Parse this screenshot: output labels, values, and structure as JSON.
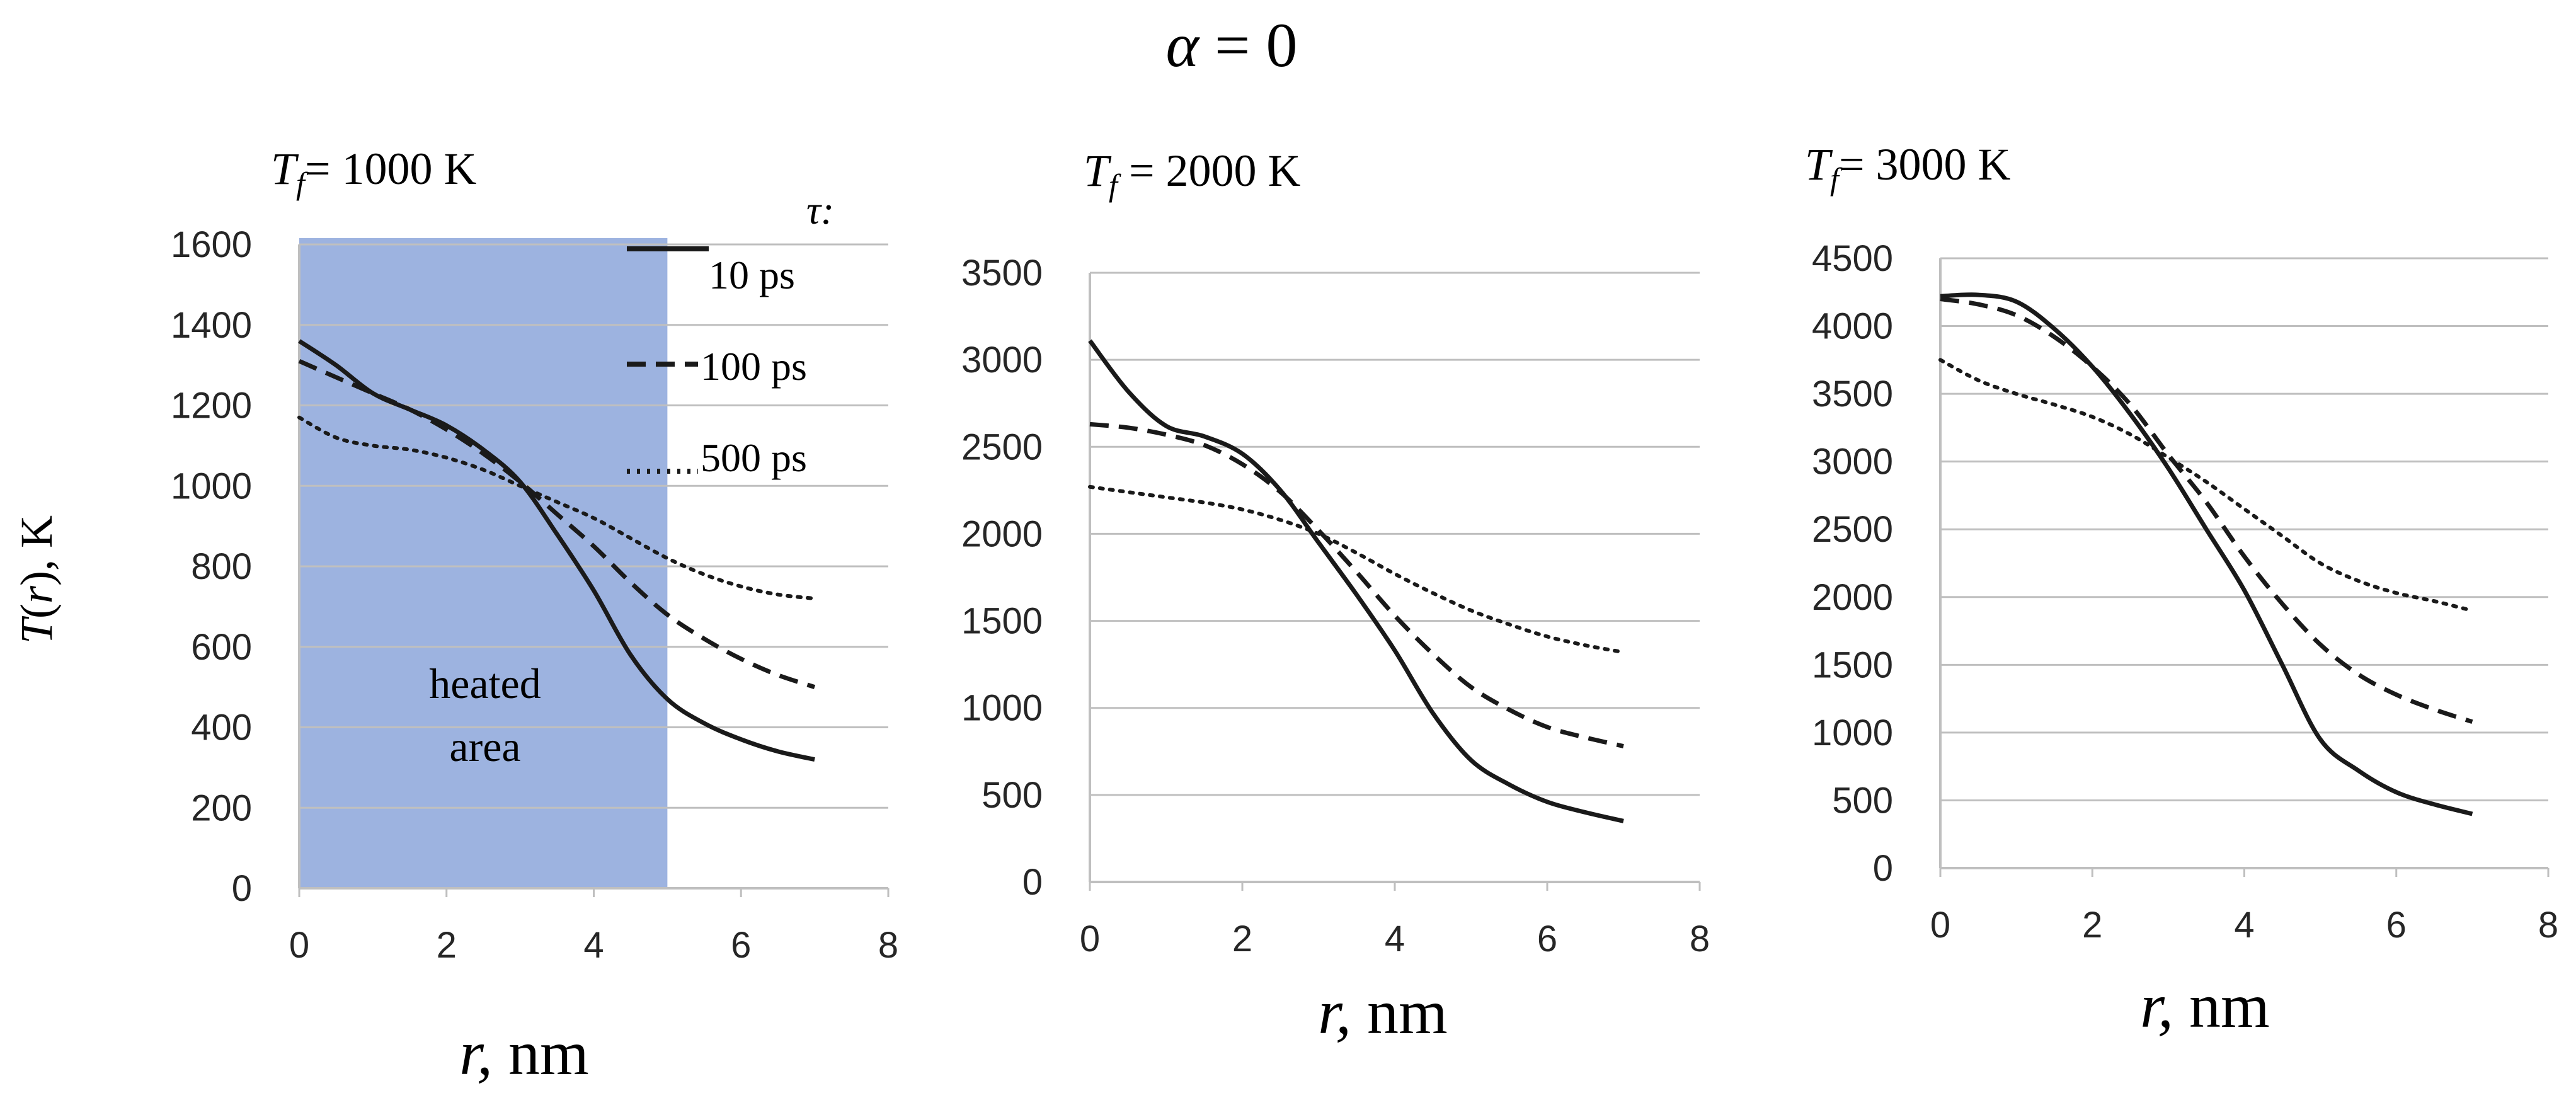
{
  "figure_title": {
    "symbol": "α",
    "rest": " = 0"
  },
  "y_axis_label": {
    "symbol": "T",
    "open": "(",
    "arg": "r",
    "close": "), K"
  },
  "colors": {
    "heated_area": "#9db3e0",
    "line": "#1a1a1a",
    "grid": "#bfbfbf",
    "axis_text": "#262626"
  },
  "chart_data": [
    {
      "type": "line",
      "title": {
        "symbol": "T",
        "sub": "f",
        "text": "= 1000 K"
      },
      "xlabel": {
        "symbol": "r,",
        "text": " nm"
      },
      "ylabel": "T(r), K",
      "xlim": [
        0,
        8
      ],
      "ylim": [
        0,
        1600
      ],
      "xticks": [
        0,
        2,
        4,
        6,
        8
      ],
      "yticks": [
        0,
        200,
        400,
        600,
        800,
        1000,
        1200,
        1400,
        1600
      ],
      "grid": true,
      "legend": {
        "title": "τ:",
        "position": "top-right",
        "entries": [
          "10 ps",
          "100 ps",
          "500 ps"
        ]
      },
      "shaded_region": {
        "x_start": 0,
        "x_end": 5,
        "label_lines": [
          "heated",
          "area"
        ]
      },
      "x": [
        0,
        0.5,
        1,
        1.5,
        2,
        2.5,
        3,
        3.5,
        4,
        4.5,
        5,
        5.5,
        6,
        6.5,
        7
      ],
      "series": [
        {
          "name": "10 ps",
          "style": "solid",
          "values": [
            1360,
            1300,
            1230,
            1190,
            1150,
            1090,
            1010,
            880,
            740,
            580,
            470,
            410,
            370,
            340,
            320
          ]
        },
        {
          "name": "100 ps",
          "style": "dashed",
          "values": [
            1310,
            1270,
            1230,
            1190,
            1140,
            1080,
            1010,
            930,
            850,
            760,
            680,
            620,
            570,
            530,
            500
          ]
        },
        {
          "name": "500 ps",
          "style": "dotted",
          "values": [
            1170,
            1120,
            1100,
            1090,
            1070,
            1040,
            1000,
            960,
            920,
            870,
            820,
            780,
            750,
            730,
            720
          ]
        }
      ]
    },
    {
      "type": "line",
      "title": {
        "symbol": "T",
        "sub": "f",
        "text": " = 2000 K"
      },
      "xlabel": {
        "symbol": "r,",
        "text": " nm"
      },
      "xlim": [
        0,
        8
      ],
      "ylim": [
        0,
        3500
      ],
      "xticks": [
        0,
        2,
        4,
        6,
        8
      ],
      "yticks": [
        0,
        500,
        1000,
        1500,
        2000,
        2500,
        3000,
        3500
      ],
      "grid": true,
      "x": [
        0,
        0.5,
        1,
        1.5,
        2,
        2.5,
        3,
        3.5,
        4,
        4.5,
        5,
        5.5,
        6,
        6.5,
        7
      ],
      "series": [
        {
          "name": "10 ps",
          "style": "solid",
          "values": [
            3110,
            2820,
            2620,
            2560,
            2460,
            2250,
            1950,
            1650,
            1330,
            970,
            700,
            560,
            460,
            400,
            350
          ]
        },
        {
          "name": "100 ps",
          "style": "dashed",
          "values": [
            2630,
            2610,
            2570,
            2510,
            2400,
            2240,
            2020,
            1780,
            1530,
            1310,
            1120,
            990,
            890,
            830,
            780
          ]
        },
        {
          "name": "500 ps",
          "style": "dotted",
          "values": [
            2270,
            2240,
            2210,
            2180,
            2140,
            2080,
            2000,
            1890,
            1770,
            1660,
            1560,
            1480,
            1410,
            1360,
            1320
          ]
        }
      ]
    },
    {
      "type": "line",
      "title": {
        "symbol": "T",
        "sub": "f",
        "text": "= 3000 K"
      },
      "xlabel": {
        "symbol": "r,",
        "text": " nm"
      },
      "xlim": [
        0,
        8
      ],
      "ylim": [
        0,
        4500
      ],
      "xticks": [
        0,
        2,
        4,
        6,
        8
      ],
      "yticks": [
        0,
        500,
        1000,
        1500,
        2000,
        2500,
        3000,
        3500,
        4000,
        4500
      ],
      "grid": true,
      "x": [
        0,
        0.5,
        1,
        1.5,
        2,
        2.5,
        3,
        3.5,
        4,
        4.5,
        5,
        5.5,
        6,
        6.5,
        7
      ],
      "series": [
        {
          "name": "10 ps",
          "style": "solid",
          "values": [
            4220,
            4230,
            4180,
            3980,
            3700,
            3350,
            2950,
            2500,
            2050,
            1500,
            950,
            720,
            560,
            470,
            400
          ]
        },
        {
          "name": "100 ps",
          "style": "dashed",
          "values": [
            4200,
            4160,
            4080,
            3920,
            3700,
            3420,
            3050,
            2700,
            2300,
            1950,
            1650,
            1430,
            1280,
            1170,
            1080
          ]
        },
        {
          "name": "500 ps",
          "style": "dotted",
          "values": [
            3750,
            3600,
            3500,
            3420,
            3330,
            3200,
            3030,
            2850,
            2650,
            2450,
            2250,
            2120,
            2030,
            1970,
            1900
          ]
        }
      ]
    }
  ]
}
